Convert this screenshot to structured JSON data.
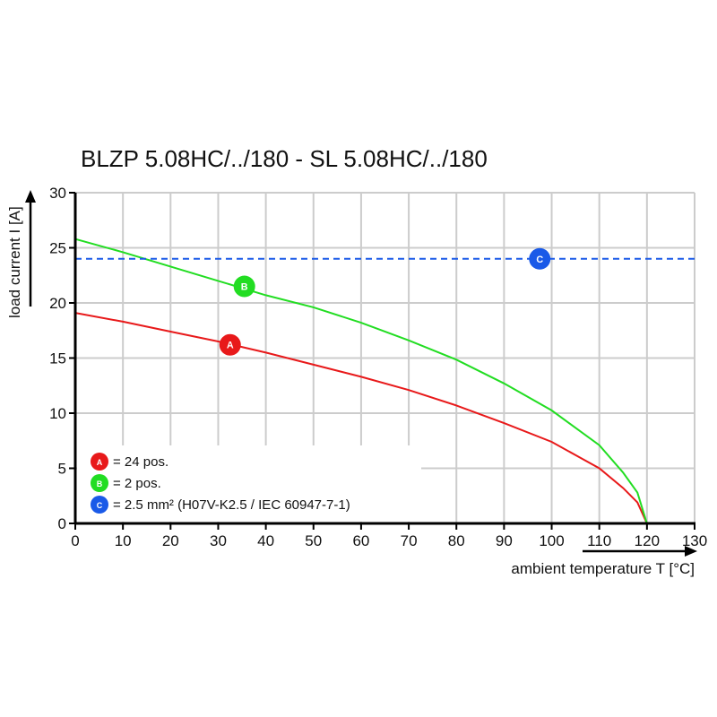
{
  "chart_data": {
    "type": "line",
    "title": "BLZP 5.08HC/../180 - SL 5.08HC/../180",
    "xlabel": "ambient temperature T [°C]",
    "ylabel": "load current I [A]",
    "xlim": [
      0,
      130
    ],
    "ylim": [
      0,
      30
    ],
    "xticks": [
      0,
      10,
      20,
      30,
      40,
      50,
      60,
      70,
      80,
      90,
      100,
      110,
      120,
      130
    ],
    "yticks": [
      0,
      5,
      10,
      15,
      20,
      25,
      30
    ],
    "grid": true,
    "legend_placement": "bottom-left",
    "series": [
      {
        "marker": "A",
        "color": "#e8191a",
        "style": "solid",
        "x": [
          0,
          10,
          20,
          30,
          40,
          50,
          60,
          70,
          80,
          90,
          100,
          110,
          115,
          118,
          120
        ],
        "y": [
          19.1,
          18.3,
          17.4,
          16.5,
          15.5,
          14.4,
          13.3,
          12.1,
          10.7,
          9.1,
          7.4,
          5.0,
          3.2,
          1.9,
          0
        ],
        "label_at": [
          32.5,
          16.2
        ]
      },
      {
        "marker": "B",
        "color": "#22dd22",
        "style": "solid",
        "x": [
          0,
          10,
          20,
          30,
          40,
          50,
          60,
          70,
          80,
          90,
          100,
          110,
          115,
          118,
          120
        ],
        "y": [
          25.8,
          24.6,
          23.3,
          22.0,
          20.7,
          19.6,
          18.2,
          16.6,
          14.85,
          12.7,
          10.25,
          7.1,
          4.6,
          2.8,
          0
        ],
        "label_at": [
          35.5,
          21.5
        ]
      },
      {
        "marker": "C",
        "color": "#1a5ae8",
        "style": "dashed",
        "x": [
          0,
          130
        ],
        "y": [
          24,
          24
        ],
        "label_at": [
          97.5,
          24
        ]
      }
    ],
    "legend": [
      {
        "marker": "A",
        "text": "= 24 pos."
      },
      {
        "marker": "B",
        "text": "= 2 pos."
      },
      {
        "marker": "C",
        "text": "= 2.5 mm² (H07V-K2.5 / IEC 60947-7-1)"
      }
    ]
  }
}
